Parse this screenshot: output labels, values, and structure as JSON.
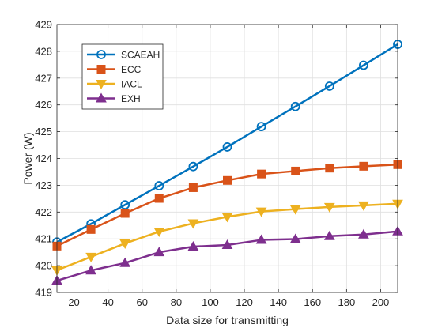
{
  "chart_data": {
    "type": "line",
    "title": "",
    "xlabel": "Data size for transmitting",
    "ylabel": "Power (W)",
    "xlim": [
      10,
      210
    ],
    "ylim": [
      419,
      429
    ],
    "xticks": [
      20,
      40,
      60,
      80,
      100,
      120,
      140,
      160,
      180,
      200
    ],
    "yticks": [
      419,
      420,
      421,
      422,
      423,
      424,
      425,
      426,
      427,
      428,
      429
    ],
    "grid": true,
    "legend_position": "top-left",
    "x": [
      10,
      30,
      50,
      70,
      90,
      110,
      130,
      150,
      170,
      190,
      210
    ],
    "series": [
      {
        "name": "SCAEAH",
        "color": "#0072BD",
        "marker": "circle",
        "values": [
          420.88,
          421.56,
          422.27,
          422.98,
          423.7,
          424.43,
          425.19,
          425.94,
          426.7,
          427.48,
          428.26
        ]
      },
      {
        "name": "ECC",
        "color": "#D95319",
        "marker": "square",
        "values": [
          420.73,
          421.35,
          421.95,
          422.51,
          422.91,
          423.18,
          423.42,
          423.53,
          423.64,
          423.71,
          423.77
        ]
      },
      {
        "name": "IACL",
        "color": "#EDB120",
        "marker": "triangle-down",
        "values": [
          419.83,
          420.33,
          420.83,
          421.27,
          421.58,
          421.82,
          422.02,
          422.11,
          422.19,
          422.25,
          422.31
        ]
      },
      {
        "name": "EXH",
        "color": "#7E2F8E",
        "marker": "triangle-up",
        "values": [
          419.44,
          419.82,
          420.1,
          420.5,
          420.71,
          420.77,
          420.96,
          420.99,
          421.1,
          421.16,
          421.28
        ]
      }
    ]
  }
}
